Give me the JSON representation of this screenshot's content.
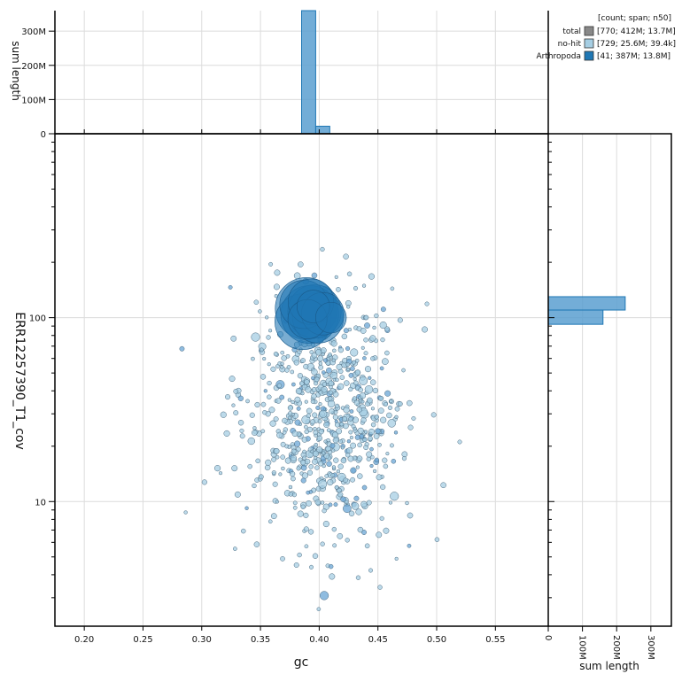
{
  "colors": {
    "total": "#888888",
    "no-hit": "#a6cee3",
    "Arthropoda": "#1f77b4",
    "grid": "#dcdcdc"
  },
  "legend": {
    "header": "[count; span; n50]",
    "items": [
      {
        "label": "total",
        "stats": "[770; 412M; 13.7M]",
        "color": "#888888"
      },
      {
        "label": "no-hit",
        "stats": "[729; 25.6M; 39.4k]",
        "color": "#a6cee3"
      },
      {
        "label": "Arthropoda",
        "stats": "[41; 387M; 13.8M]",
        "color": "#1f77b4"
      }
    ]
  },
  "axes": {
    "xlabel": "gc",
    "ylabel": "ERR12257390_T1_cov",
    "top_ylabel": "sum length",
    "right_xlabel": "sum length"
  },
  "chart_data": [
    {
      "type": "scatter",
      "xlabel": "gc",
      "ylabel": "ERR12257390_T1_cov",
      "xlim": [
        0.175,
        0.595
      ],
      "ylim": [
        2.1,
        1000
      ],
      "y_scale": "log",
      "grid": true,
      "x_ticks": [
        "0.20",
        "0.25",
        "0.30",
        "0.35",
        "0.40",
        "0.45",
        "0.50",
        "0.55"
      ],
      "y_ticks": [
        "10",
        "100"
      ],
      "series": [
        {
          "name": "Arthropoda",
          "color": "#1f77b4",
          "points": [
            {
              "x": 0.389,
              "y": 112,
              "span_m": 65
            },
            {
              "x": 0.392,
              "y": 104,
              "span_m": 55
            },
            {
              "x": 0.386,
              "y": 95,
              "span_m": 50
            },
            {
              "x": 0.396,
              "y": 108,
              "span_m": 45
            },
            {
              "x": 0.399,
              "y": 100,
              "span_m": 40
            },
            {
              "x": 0.387,
              "y": 118,
              "span_m": 35
            },
            {
              "x": 0.393,
              "y": 122,
              "span_m": 30
            },
            {
              "x": 0.403,
              "y": 105,
              "span_m": 25
            },
            {
              "x": 0.39,
              "y": 98,
              "span_m": 20
            },
            {
              "x": 0.395,
              "y": 115,
              "span_m": 12
            },
            {
              "x": 0.41,
              "y": 100,
              "span_m": 10
            }
          ]
        },
        {
          "name": "no-hit",
          "color": "#a6cee3",
          "count": 729
        }
      ]
    },
    {
      "type": "bar",
      "panel": "top",
      "xlabel": "gc",
      "ylabel": "sum length",
      "y_ticks": [
        "0",
        "100M",
        "200M",
        "300M"
      ],
      "ylim": [
        0,
        360
      ],
      "bins": [
        {
          "x0": 0.385,
          "x1": 0.397,
          "value": 360
        },
        {
          "x0": 0.397,
          "x1": 0.409,
          "value": 22
        }
      ]
    },
    {
      "type": "bar",
      "panel": "right",
      "orientation": "horizontal",
      "xlabel": "sum length",
      "x_ticks": [
        "0",
        "100M",
        "200M",
        "300M"
      ],
      "xlim": [
        0,
        360
      ],
      "bins": [
        {
          "y0": 110,
          "y1": 130,
          "value": 225
        },
        {
          "y0": 92,
          "y1": 110,
          "value": 160
        }
      ]
    }
  ]
}
